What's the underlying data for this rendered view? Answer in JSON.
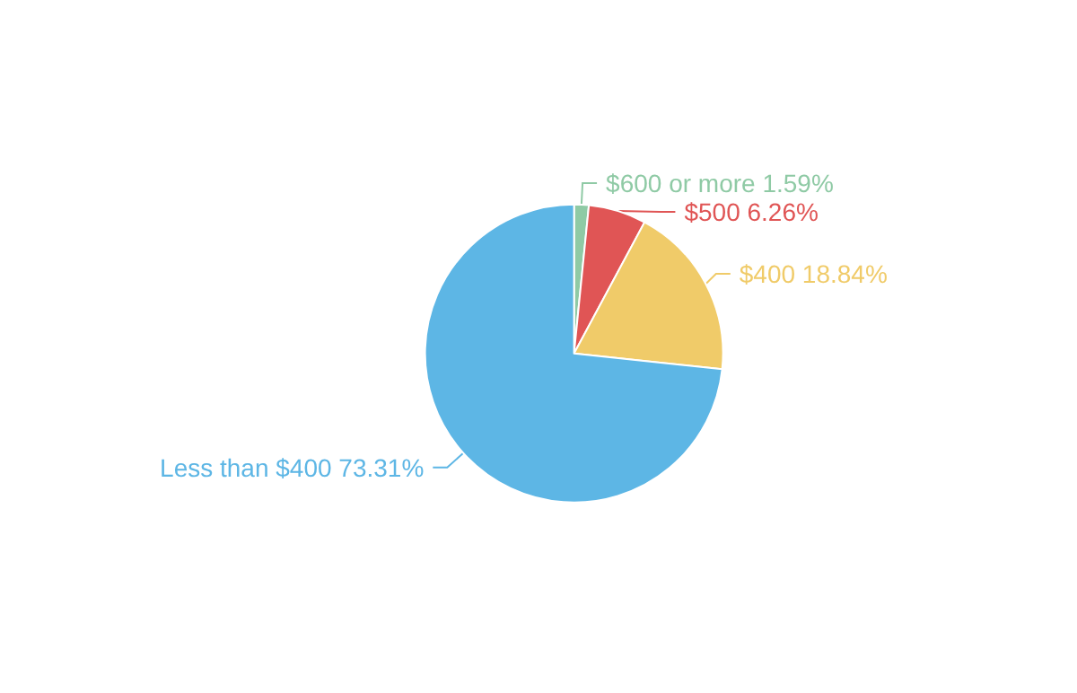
{
  "chart_data": {
    "type": "pie",
    "categories": [
      "$600 or more",
      "$500",
      "$400",
      "Less than $400"
    ],
    "values": [
      1.59,
      6.26,
      18.84,
      73.31
    ],
    "value_labels": [
      "1.59%",
      "6.26%",
      "18.84%",
      "73.31%"
    ],
    "colors": [
      "#8fcaa5",
      "#e05555",
      "#f0cb69",
      "#5db6e5"
    ],
    "legend": false
  }
}
